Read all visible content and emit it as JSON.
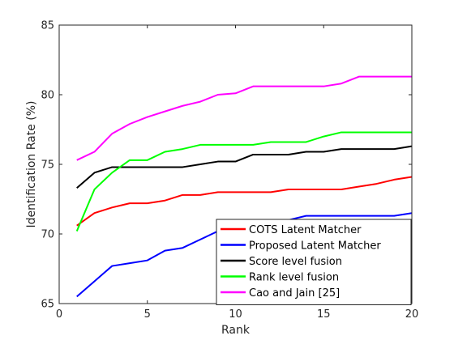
{
  "chart_data": {
    "type": "line",
    "title": "",
    "xlabel": "Rank",
    "ylabel": "Identification Rate (%)",
    "xlim": [
      0,
      20
    ],
    "ylim": [
      65,
      85
    ],
    "xticks": [
      0,
      5,
      10,
      15,
      20
    ],
    "yticks": [
      65,
      70,
      75,
      80,
      85
    ],
    "grid": false,
    "legend_position": "bottom-right",
    "x": [
      1,
      2,
      3,
      4,
      5,
      6,
      7,
      8,
      9,
      10,
      11,
      12,
      13,
      14,
      15,
      16,
      17,
      18,
      19,
      20
    ],
    "series": [
      {
        "name": "COTS Latent Matcher",
        "color": "#ff0000",
        "values": [
          70.6,
          71.5,
          71.9,
          72.2,
          72.2,
          72.4,
          72.8,
          72.8,
          73.0,
          73.0,
          73.0,
          73.0,
          73.2,
          73.2,
          73.2,
          73.2,
          73.4,
          73.6,
          73.9,
          74.1
        ]
      },
      {
        "name": "Proposed Latent Matcher",
        "color": "#0000ff",
        "values": [
          65.5,
          66.6,
          67.7,
          67.9,
          68.1,
          68.8,
          69.0,
          69.6,
          70.2,
          70.4,
          70.6,
          70.8,
          71.0,
          71.3,
          71.3,
          71.3,
          71.3,
          71.3,
          71.3,
          71.5
        ]
      },
      {
        "name": "Score level fusion",
        "color": "#000000",
        "values": [
          73.3,
          74.4,
          74.8,
          74.8,
          74.8,
          74.8,
          74.8,
          75.0,
          75.2,
          75.2,
          75.7,
          75.7,
          75.7,
          75.9,
          75.9,
          76.1,
          76.1,
          76.1,
          76.1,
          76.3
        ]
      },
      {
        "name": "Rank level fusion",
        "color": "#00ff00",
        "values": [
          70.2,
          73.2,
          74.4,
          75.3,
          75.3,
          75.9,
          76.1,
          76.4,
          76.4,
          76.4,
          76.4,
          76.6,
          76.6,
          76.6,
          77.0,
          77.3,
          77.3,
          77.3,
          77.3,
          77.3
        ]
      },
      {
        "name": "Cao and Jain [25]",
        "color": "#ff00ff",
        "values": [
          75.3,
          75.9,
          77.2,
          77.9,
          78.4,
          78.8,
          79.2,
          79.5,
          80.0,
          80.1,
          80.6,
          80.6,
          80.6,
          80.6,
          80.6,
          80.8,
          81.3,
          81.3,
          81.3,
          81.3
        ]
      }
    ]
  }
}
